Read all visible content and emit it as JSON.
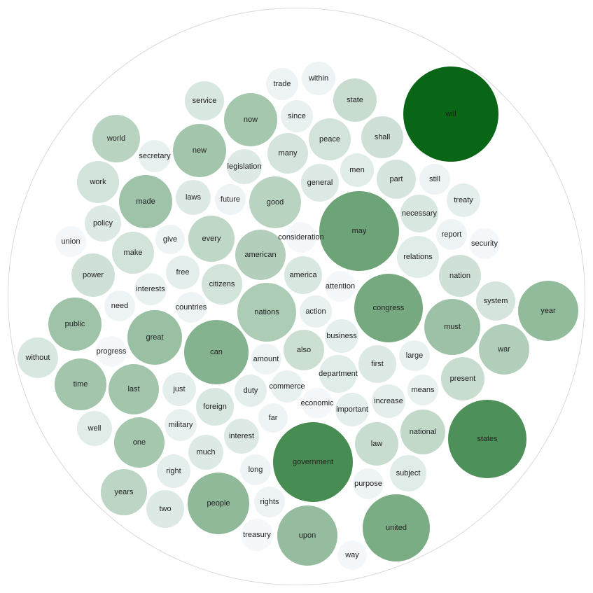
{
  "chart_data": {
    "type": "bubble",
    "title": "",
    "color_scale": {
      "low": "#f4f8fb",
      "high": "#0a6617"
    },
    "bubbles": [
      {
        "label": "will",
        "value": 100
      },
      {
        "label": "states",
        "value": 69
      },
      {
        "label": "government",
        "value": 72
      },
      {
        "label": "may",
        "value": 56
      },
      {
        "label": "united",
        "value": 50
      },
      {
        "label": "congress",
        "value": 52
      },
      {
        "label": "can",
        "value": 46
      },
      {
        "label": "people",
        "value": 42
      },
      {
        "label": "upon",
        "value": 40
      },
      {
        "label": "year",
        "value": 41
      },
      {
        "label": "made",
        "value": 36
      },
      {
        "label": "public",
        "value": 36
      },
      {
        "label": "great",
        "value": 38
      },
      {
        "label": "now",
        "value": 34
      },
      {
        "label": "must",
        "value": 37
      },
      {
        "label": "time",
        "value": 35
      },
      {
        "label": "last",
        "value": 35
      },
      {
        "label": "new",
        "value": 35
      },
      {
        "label": "one",
        "value": 34
      },
      {
        "label": "american",
        "value": 29
      },
      {
        "label": "war",
        "value": 30
      },
      {
        "label": "nations",
        "value": 31
      },
      {
        "label": "national",
        "value": 24
      },
      {
        "label": "good",
        "value": 27
      },
      {
        "label": "world",
        "value": 27
      },
      {
        "label": "years",
        "value": 26
      },
      {
        "label": "every",
        "value": 25
      },
      {
        "label": "law",
        "value": 22
      },
      {
        "label": "state",
        "value": 22
      },
      {
        "label": "present",
        "value": 22
      },
      {
        "label": "also",
        "value": 21
      },
      {
        "label": "nation",
        "value": 20
      },
      {
        "label": "shall",
        "value": 20
      },
      {
        "label": "power",
        "value": 20
      },
      {
        "label": "work",
        "value": 19
      },
      {
        "label": "make",
        "value": 19
      },
      {
        "label": "peace",
        "value": 19
      },
      {
        "label": "citizens",
        "value": 19
      },
      {
        "label": "part",
        "value": 18
      },
      {
        "label": "system",
        "value": 18
      },
      {
        "label": "many",
        "value": 18
      },
      {
        "label": "america",
        "value": 17
      },
      {
        "label": "service",
        "value": 17
      },
      {
        "label": "foreign",
        "value": 17
      },
      {
        "label": "without",
        "value": 17
      },
      {
        "label": "necessary",
        "value": 17
      },
      {
        "label": "much",
        "value": 16
      },
      {
        "label": "first",
        "value": 16
      },
      {
        "label": "general",
        "value": 16
      },
      {
        "label": "laws",
        "value": 16
      },
      {
        "label": "legislation",
        "value": 16
      },
      {
        "label": "men",
        "value": 15
      },
      {
        "label": "subject",
        "value": 15
      },
      {
        "label": "policy",
        "value": 16
      },
      {
        "label": "interest",
        "value": 16
      },
      {
        "label": "two",
        "value": 16
      },
      {
        "label": "well",
        "value": 15
      },
      {
        "label": "department",
        "value": 15
      },
      {
        "label": "relations",
        "value": 15
      },
      {
        "label": "right",
        "value": 14
      },
      {
        "label": "free",
        "value": 14
      },
      {
        "label": "business",
        "value": 14
      },
      {
        "label": "increase",
        "value": 14
      },
      {
        "label": "important",
        "value": 14
      },
      {
        "label": "treaty",
        "value": 14
      },
      {
        "label": "just",
        "value": 14
      },
      {
        "label": "secretary",
        "value": 13
      },
      {
        "label": "duty",
        "value": 14
      },
      {
        "label": "since",
        "value": 13
      },
      {
        "label": "interests",
        "value": 13
      },
      {
        "label": "action",
        "value": 13
      },
      {
        "label": "military",
        "value": 13
      },
      {
        "label": "means",
        "value": 13
      },
      {
        "label": "large",
        "value": 13
      },
      {
        "label": "commerce",
        "value": 13
      },
      {
        "label": "long",
        "value": 12
      },
      {
        "label": "within",
        "value": 12
      },
      {
        "label": "trade",
        "value": 12
      },
      {
        "label": "rights",
        "value": 12
      },
      {
        "label": "purpose",
        "value": 12
      },
      {
        "label": "amount",
        "value": 12
      },
      {
        "label": "need",
        "value": 12
      },
      {
        "label": "still",
        "value": 12
      },
      {
        "label": "report",
        "value": 12
      },
      {
        "label": "future",
        "value": 12
      },
      {
        "label": "give",
        "value": 12
      },
      {
        "label": "far",
        "value": 12
      },
      {
        "label": "countries",
        "value": 12
      },
      {
        "label": "treasury",
        "value": 11
      },
      {
        "label": "security",
        "value": 11
      },
      {
        "label": "union",
        "value": 11
      },
      {
        "label": "progress",
        "value": 11
      },
      {
        "label": "attention",
        "value": 11
      },
      {
        "label": "consideration",
        "value": 11
      },
      {
        "label": "economic",
        "value": 11
      },
      {
        "label": "way",
        "value": 11
      }
    ]
  }
}
